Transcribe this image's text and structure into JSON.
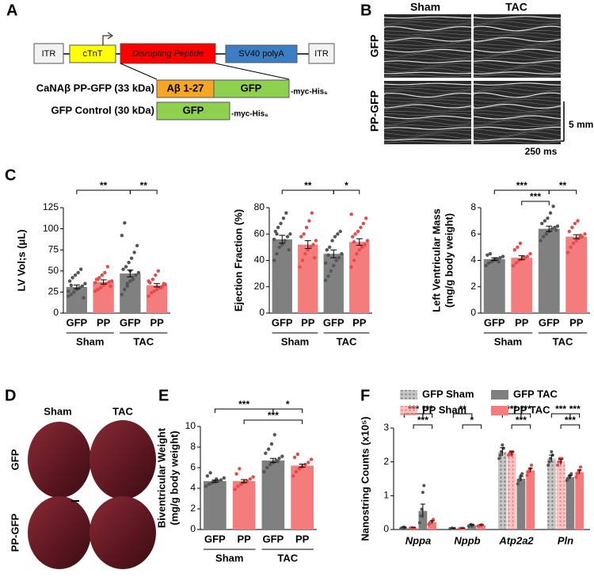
{
  "panel_labels": [
    "A",
    "B",
    "C",
    "D",
    "E",
    "F"
  ],
  "construct": {
    "elements": [
      "ITR",
      "cTnT",
      "Disrupting Peptide",
      "SV40 polyA",
      "ITR"
    ],
    "variants": [
      {
        "name": "CaNAβ PP-GFP (33 kDa)",
        "parts": [
          "Aβ 1-27",
          "GFP"
        ],
        "tag": "-myc-His₆"
      },
      {
        "name": "GFP Control (30 kDa)",
        "parts": [
          "GFP"
        ],
        "tag": "-myc-His₆"
      }
    ]
  },
  "echo": {
    "columns": [
      "Sham",
      "TAC"
    ],
    "rows": [
      "GFP",
      "PP-GFP"
    ],
    "scale_y": "5 mm",
    "scale_x": "250 ms"
  },
  "hearts": {
    "columns": [
      "Sham",
      "TAC"
    ],
    "rows": [
      "GFP",
      "PP-GFP"
    ]
  },
  "chart_data": [
    {
      "type": "bar",
      "ylabel": [
        "LV Vol;s (μL)"
      ],
      "categories": [
        "GFP",
        "PP",
        "GFP",
        "PP"
      ],
      "groups": [
        "Sham",
        "TAC"
      ],
      "values": [
        31,
        37,
        47,
        33
      ],
      "errors": [
        2.2,
        2.5,
        4,
        2
      ],
      "colors": [
        "#808080",
        "#f47c7c",
        "#808080",
        "#f47c7c"
      ],
      "point_colors": [
        "#555555",
        "#e84a4a",
        "#555555",
        "#e84a4a"
      ],
      "points": [
        [
          20,
          22,
          25,
          28,
          30,
          32,
          35,
          38,
          42,
          45,
          48,
          52,
          18,
          26,
          33
        ],
        [
          26,
          28,
          30,
          33,
          35,
          37,
          38,
          40,
          42,
          45,
          48,
          55,
          32,
          36,
          40
        ],
        [
          22,
          28,
          32,
          38,
          40,
          45,
          48,
          52,
          55,
          60,
          65,
          72,
          80,
          92,
          107,
          35,
          50
        ],
        [
          20,
          24,
          26,
          28,
          30,
          32,
          34,
          36,
          40,
          45,
          50,
          30,
          35,
          38
        ]
      ],
      "ylim": [
        0,
        125
      ],
      "yticks": [
        0,
        25,
        50,
        75,
        100,
        125
      ],
      "brackets": [
        [
          {
            "from": 0,
            "to": 2,
            "label": "**"
          },
          {
            "from": 2,
            "to": 3,
            "label": "**"
          }
        ]
      ]
    },
    {
      "type": "bar",
      "ylabel": [
        "Ejection  Fraction (%)"
      ],
      "categories": [
        "GFP",
        "PP",
        "GFP",
        "PP"
      ],
      "groups": [
        "Sham",
        "TAC"
      ],
      "values": [
        56,
        52,
        45,
        54
      ],
      "errors": [
        3,
        3,
        3,
        2.5
      ],
      "colors": [
        "#808080",
        "#f47c7c",
        "#808080",
        "#f47c7c"
      ],
      "point_colors": [
        "#555555",
        "#e84a4a",
        "#555555",
        "#e84a4a"
      ],
      "points": [
        [
          40,
          45,
          50,
          52,
          55,
          58,
          60,
          62,
          65,
          68,
          72,
          76,
          48,
          56,
          60
        ],
        [
          35,
          40,
          45,
          48,
          50,
          52,
          55,
          58,
          60,
          65,
          70,
          76,
          42
        ],
        [
          25,
          28,
          32,
          36,
          40,
          42,
          45,
          48,
          50,
          55,
          58,
          60,
          62,
          38,
          44
        ],
        [
          35,
          40,
          45,
          48,
          50,
          52,
          55,
          58,
          60,
          62,
          65,
          68,
          72,
          75,
          54
        ]
      ],
      "ylim": [
        0,
        80
      ],
      "yticks": [
        0,
        20,
        40,
        60,
        80
      ],
      "brackets": [
        [
          {
            "from": 0,
            "to": 2,
            "label": "**"
          },
          {
            "from": 2,
            "to": 3,
            "label": "*"
          }
        ]
      ]
    },
    {
      "type": "bar",
      "ylabel": [
        "Left Ventricular Mass",
        "(mg/g body weight)"
      ],
      "categories": [
        "GFP",
        "PP",
        "GFP",
        "PP"
      ],
      "groups": [
        "Sham",
        "TAC"
      ],
      "values": [
        4.1,
        4.2,
        6.4,
        5.8
      ],
      "errors": [
        0.1,
        0.15,
        0.2,
        0.15
      ],
      "colors": [
        "#808080",
        "#f47c7c",
        "#808080",
        "#f47c7c"
      ],
      "point_colors": [
        "#555555",
        "#e84a4a",
        "#555555",
        "#e84a4a"
      ],
      "points": [
        [
          3.6,
          3.8,
          3.9,
          4.0,
          4.1,
          4.2,
          4.3,
          4.4,
          4.5,
          4.0,
          4.1,
          3.9
        ],
        [
          3.6,
          3.8,
          4.0,
          4.1,
          4.2,
          4.3,
          4.5,
          4.8,
          5.0,
          5.3,
          4.2
        ],
        [
          5.5,
          5.8,
          6.0,
          6.2,
          6.4,
          6.5,
          6.6,
          6.8,
          7.0,
          7.2,
          7.6,
          8.1,
          6.3
        ],
        [
          4.6,
          5.0,
          5.3,
          5.5,
          5.7,
          5.8,
          6.0,
          6.2,
          6.5,
          6.8,
          7.0,
          5.9
        ]
      ],
      "ylim": [
        0,
        8
      ],
      "yticks": [
        0,
        2,
        4,
        6,
        8
      ],
      "brackets": [
        [
          {
            "from": 0,
            "to": 2,
            "label": "***"
          },
          {
            "from": 2,
            "to": 3,
            "label": "**"
          }
        ],
        [
          {
            "from": 1,
            "to": 2,
            "label": "***"
          }
        ]
      ]
    },
    {
      "type": "bar",
      "ylabel": [
        "Biventricular Weight",
        "(mg/g body weight)"
      ],
      "categories": [
        "GFP",
        "PP",
        "GFP",
        "PP"
      ],
      "groups": [
        "Sham",
        "TAC"
      ],
      "values": [
        4.7,
        4.7,
        6.7,
        6.2
      ],
      "errors": [
        0.1,
        0.15,
        0.2,
        0.15
      ],
      "colors": [
        "#808080",
        "#f47c7c",
        "#808080",
        "#f47c7c"
      ],
      "point_colors": [
        "#555555",
        "#e84a4a",
        "#555555",
        "#e84a4a"
      ],
      "points": [
        [
          4.2,
          4.4,
          4.5,
          4.6,
          4.7,
          4.8,
          5.0,
          5.2,
          5.5,
          4.6,
          4.9
        ],
        [
          3.9,
          4.2,
          4.4,
          4.6,
          4.7,
          4.9,
          5.1,
          5.4,
          5.9,
          4.5
        ],
        [
          5.6,
          6.0,
          6.3,
          6.5,
          6.7,
          6.9,
          7.1,
          7.4,
          7.8,
          8.3,
          9.2,
          6.6
        ],
        [
          5.2,
          5.6,
          5.9,
          6.1,
          6.3,
          6.5,
          6.8,
          7.0,
          7.3,
          6.0
        ]
      ],
      "ylim": [
        0,
        10
      ],
      "yticks": [
        0,
        2,
        4,
        6,
        8,
        10
      ],
      "brackets": [
        [
          {
            "from": 0,
            "to": 2,
            "label": "***"
          },
          {
            "from": 2,
            "to": 3,
            "label": "*"
          }
        ],
        [
          {
            "from": 1,
            "to": 3,
            "label": "***"
          }
        ]
      ]
    },
    {
      "type": "grouped_bar",
      "ylabel": [
        "Nanostring Counts (x10⁵)"
      ],
      "categories": [
        "Nppa",
        "Nppb",
        "Atp2a2",
        "Pln"
      ],
      "series": [
        {
          "name": "GFP Sham",
          "color": "#808080",
          "pattern": "dots",
          "values": [
            0.05,
            0.03,
            2.3,
            2.1
          ],
          "errors": [
            0.02,
            0.01,
            0.12,
            0.1
          ],
          "points": [
            [
              0.03,
              0.05,
              0.06,
              0.07,
              0.04
            ],
            [
              0.02,
              0.03,
              0.04,
              0.03,
              0.03
            ],
            [
              2.1,
              2.2,
              2.3,
              2.5,
              2.4
            ],
            [
              1.9,
              2.0,
              2.1,
              2.3,
              2.2
            ]
          ]
        },
        {
          "name": "PP Sham",
          "color": "#f47c7c",
          "pattern": "dots",
          "values": [
            0.05,
            0.03,
            2.25,
            2.0
          ],
          "errors": [
            0.01,
            0.01,
            0.05,
            0.08
          ],
          "points": [
            [
              0.04,
              0.05,
              0.06,
              0.05,
              0.04
            ],
            [
              0.02,
              0.03,
              0.03,
              0.04,
              0.03
            ],
            [
              2.2,
              2.25,
              2.3,
              2.2,
              2.3
            ],
            [
              1.9,
              2.0,
              2.1,
              2.0,
              2.1
            ]
          ]
        },
        {
          "name": "GFP TAC",
          "color": "#808080",
          "pattern": "solid",
          "values": [
            0.55,
            0.12,
            1.5,
            1.55
          ],
          "errors": [
            0.2,
            0.02,
            0.07,
            0.05
          ],
          "points": [
            [
              0.2,
              0.4,
              0.6,
              1.1,
              1.3
            ],
            [
              0.1,
              0.12,
              0.15,
              0.1,
              0.13
            ],
            [
              1.35,
              1.45,
              1.5,
              1.6,
              1.65
            ],
            [
              1.45,
              1.5,
              1.55,
              1.6,
              1.65
            ]
          ]
        },
        {
          "name": "PP TAC",
          "color": "#f47c7c",
          "pattern": "solid",
          "values": [
            0.22,
            0.12,
            1.75,
            1.7
          ],
          "errors": [
            0.04,
            0.02,
            0.06,
            0.06
          ],
          "points": [
            [
              0.15,
              0.2,
              0.22,
              0.25,
              0.3
            ],
            [
              0.1,
              0.11,
              0.12,
              0.14,
              0.13
            ],
            [
              1.6,
              1.7,
              1.75,
              1.8,
              1.9
            ],
            [
              1.55,
              1.65,
              1.7,
              1.75,
              1.85
            ]
          ]
        }
      ],
      "ylim": [
        0,
        3
      ],
      "yticks": [
        0,
        1,
        2,
        3
      ],
      "brackets": [
        [
          [
            {
              "from": 0,
              "to": 2,
              "label": "***"
            },
            {
              "from": 2,
              "to": 3,
              "label": "***"
            }
          ],
          [
            {
              "from": 1,
              "to": 3,
              "label": "***"
            }
          ]
        ],
        [
          [
            {
              "from": 0,
              "to": 2,
              "label": "**"
            }
          ],
          [
            {
              "from": 1,
              "to": 3,
              "label": "*"
            }
          ]
        ],
        [
          [
            {
              "from": 0,
              "to": 2,
              "label": "***"
            },
            {
              "from": 2,
              "to": 3,
              "label": "***"
            }
          ],
          [
            {
              "from": 1,
              "to": 3,
              "label": "***"
            }
          ]
        ],
        [
          [
            {
              "from": 0,
              "to": 2,
              "label": "***"
            },
            {
              "from": 2,
              "to": 3,
              "label": "***"
            }
          ],
          [
            {
              "from": 1,
              "to": 3,
              "label": "***"
            }
          ]
        ]
      ]
    }
  ]
}
